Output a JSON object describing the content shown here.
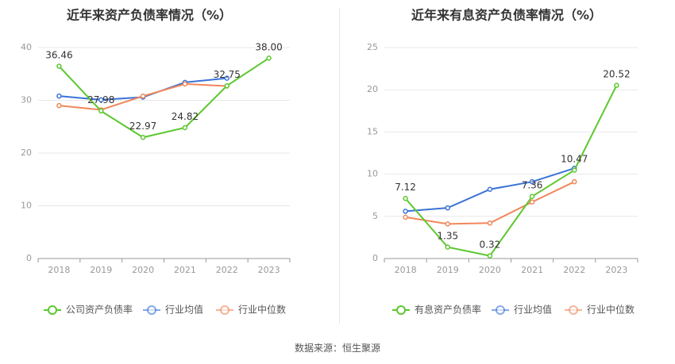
{
  "source_label": "数据来源：恒生聚源",
  "colors": {
    "green": "#5cc82e",
    "blue": "#3a72d8",
    "orange": "#f0875a",
    "grid": "#e8e8e8",
    "axis": "#999999",
    "tick_text": "#999999",
    "title": "#333333",
    "label_text": "#333333"
  },
  "chart_data": [
    {
      "type": "line",
      "title": "近年来资产负债率情况（%）",
      "categories": [
        "2018",
        "2019",
        "2020",
        "2021",
        "2022",
        "2023"
      ],
      "ylim": [
        0,
        40
      ],
      "yticks": [
        0,
        10,
        20,
        30,
        40
      ],
      "grid": true,
      "legend_position": "bottom",
      "series": [
        {
          "name": "公司资产负债率",
          "color_key": "green",
          "values": [
            36.46,
            27.98,
            22.97,
            24.82,
            32.75,
            38.0
          ],
          "labels": [
            "36.46",
            "27.98",
            "22.97",
            "24.82",
            "32.75",
            "38.00"
          ]
        },
        {
          "name": "行业均值",
          "color_key": "blue",
          "values": [
            30.8,
            30.1,
            30.6,
            33.4,
            34.2,
            null
          ]
        },
        {
          "name": "行业中位数",
          "color_key": "orange",
          "values": [
            29.0,
            28.2,
            30.8,
            33.1,
            32.7,
            null
          ]
        }
      ]
    },
    {
      "type": "line",
      "title": "近年来有息资产负债率情况（%）",
      "categories": [
        "2018",
        "2019",
        "2020",
        "2021",
        "2022",
        "2023"
      ],
      "ylim": [
        0,
        25
      ],
      "yticks": [
        0,
        5,
        10,
        15,
        20,
        25
      ],
      "grid": true,
      "legend_position": "bottom",
      "series": [
        {
          "name": "有息资产负债率",
          "color_key": "green",
          "values": [
            7.12,
            1.35,
            0.32,
            7.36,
            10.47,
            20.52
          ],
          "labels": [
            "7.12",
            "1.35",
            "0.32",
            "7.36",
            "10.47",
            "20.52"
          ]
        },
        {
          "name": "行业均值",
          "color_key": "blue",
          "values": [
            5.6,
            6.0,
            8.2,
            9.1,
            10.7,
            null
          ]
        },
        {
          "name": "行业中位数",
          "color_key": "orange",
          "values": [
            4.9,
            4.1,
            4.2,
            6.7,
            9.1,
            null
          ]
        }
      ]
    }
  ]
}
